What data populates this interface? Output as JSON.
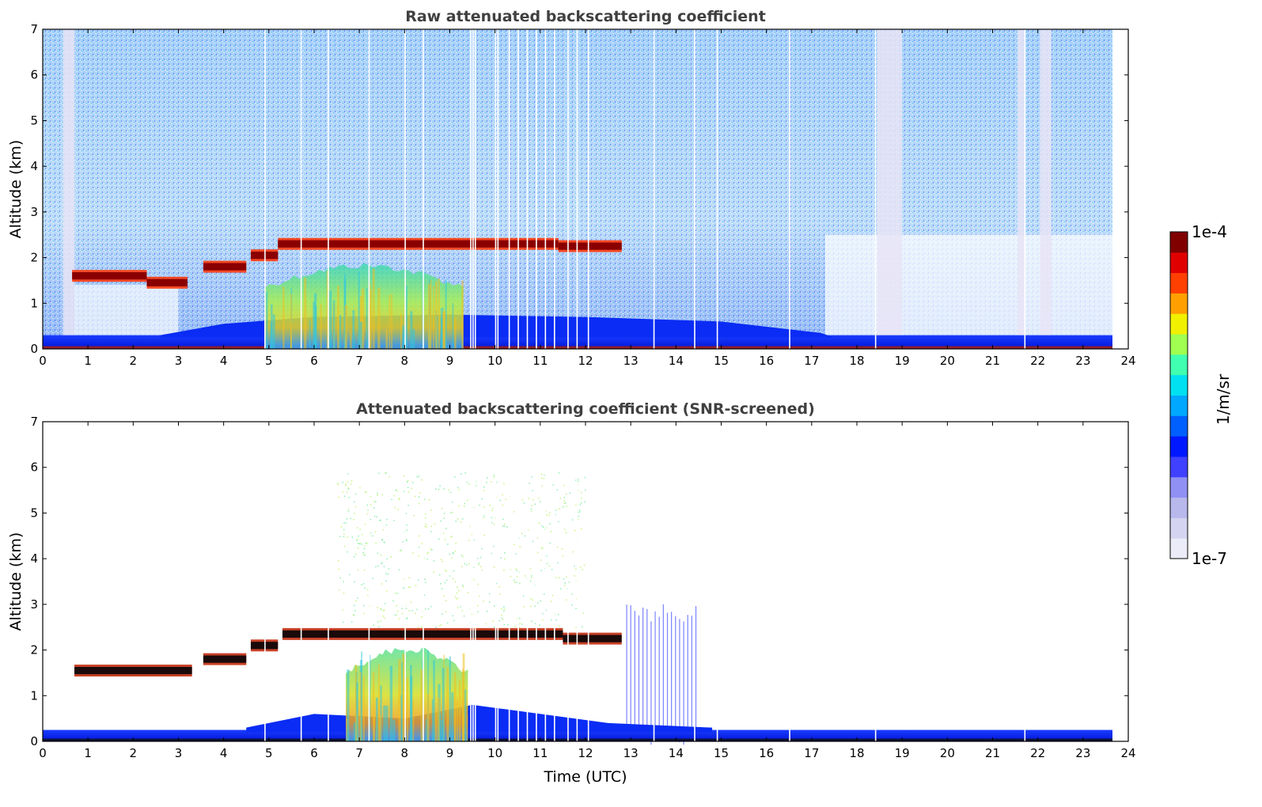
{
  "chart_data": [
    {
      "type": "heatmap",
      "title": "Raw attenuated backscattering coefficient",
      "xlabel": "",
      "ylabel": "Altitude (km)",
      "xlim": [
        0,
        24
      ],
      "ylim": [
        0,
        7
      ],
      "xticks": [
        "0",
        "1",
        "2",
        "3",
        "4",
        "5",
        "6",
        "7",
        "8",
        "9",
        "10",
        "11",
        "12",
        "13",
        "14",
        "15",
        "16",
        "17",
        "18",
        "19",
        "20",
        "21",
        "22",
        "23",
        "24"
      ],
      "yticks": [
        "0",
        "1",
        "2",
        "3",
        "4",
        "5",
        "6",
        "7"
      ],
      "features": {
        "cloud_layer": [
          {
            "t_start": 0.65,
            "t_end": 2.3,
            "alt": 1.6
          },
          {
            "t_start": 2.3,
            "t_end": 3.2,
            "alt": 1.45
          },
          {
            "t_start": 3.55,
            "t_end": 4.5,
            "alt": 1.8
          },
          {
            "t_start": 4.6,
            "t_end": 5.2,
            "alt": 2.05
          },
          {
            "t_start": 5.2,
            "t_end": 11.4,
            "alt": 2.3
          },
          {
            "t_start": 11.4,
            "t_end": 12.8,
            "alt": 2.25
          }
        ],
        "aerosol_plume": {
          "t_start": 4.9,
          "t_end": 9.3,
          "alt_top": 1.9
        },
        "boundary_layer_top_km": 0.3,
        "data_gaps_utc": [
          0.5,
          18.6,
          21.6,
          22.1,
          23.7
        ]
      }
    },
    {
      "type": "heatmap",
      "title": "Attenuated backscattering coefficient (SNR-screened)",
      "xlabel": "Time (UTC)",
      "ylabel": "Altitude (km)",
      "xlim": [
        0,
        24
      ],
      "ylim": [
        0,
        7
      ],
      "xticks": [
        "0",
        "1",
        "2",
        "3",
        "4",
        "5",
        "6",
        "7",
        "8",
        "9",
        "10",
        "11",
        "12",
        "13",
        "14",
        "15",
        "16",
        "17",
        "18",
        "19",
        "20",
        "21",
        "22",
        "23",
        "24"
      ],
      "yticks": [
        "0",
        "1",
        "2",
        "3",
        "4",
        "5",
        "6",
        "7"
      ],
      "features": {
        "cloud_layer": [
          {
            "t_start": 0.7,
            "t_end": 3.3,
            "alt": 1.55
          },
          {
            "t_start": 3.55,
            "t_end": 4.5,
            "alt": 1.8
          },
          {
            "t_start": 4.6,
            "t_end": 5.2,
            "alt": 2.1
          },
          {
            "t_start": 5.3,
            "t_end": 11.5,
            "alt": 2.35
          },
          {
            "t_start": 11.5,
            "t_end": 12.8,
            "alt": 2.25
          }
        ],
        "aerosol_plume": {
          "t_start": 6.7,
          "t_end": 9.4,
          "alt_top": 2.1
        },
        "boundary_layer_top_km": 0.25
      }
    }
  ],
  "colorbar": {
    "label": "1/m/sr",
    "max_label": "1e-4",
    "min_label": "1e-7",
    "colors": [
      "#ececf8",
      "#d4d4f0",
      "#b8b8ec",
      "#9090f4",
      "#4040ff",
      "#0018ff",
      "#0060ff",
      "#00a8ff",
      "#00e0f0",
      "#40ffb0",
      "#a0ff50",
      "#f0f000",
      "#ffa000",
      "#ff4000",
      "#e00000",
      "#800000"
    ]
  }
}
